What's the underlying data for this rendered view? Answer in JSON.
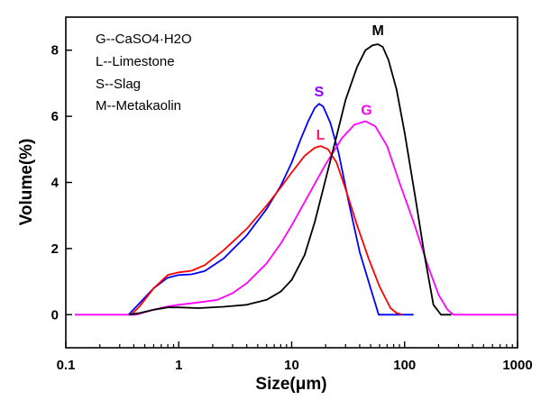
{
  "chart_data": {
    "type": "line",
    "title": "",
    "xlabel": "Size(μm)",
    "ylabel": "Volume(%)",
    "xscale": "log",
    "xlim": [
      0.1,
      1000
    ],
    "ylim": [
      -1,
      9
    ],
    "x_ticks": [
      0.1,
      1,
      10,
      100,
      1000
    ],
    "x_tick_labels": [
      "0.1",
      "1",
      "10",
      "100",
      "1000"
    ],
    "y_ticks": [
      0,
      2,
      4,
      6,
      8
    ],
    "y_tick_labels": [
      "0",
      "2",
      "4",
      "6",
      "8"
    ],
    "grid": false,
    "legend": {
      "placement": "top-left",
      "entries": [
        "G--CaSO4·H2O",
        "L--Limestone",
        "S--Slag",
        "M--Metakaolin"
      ]
    },
    "series": [
      {
        "name": "S",
        "label": "Slag",
        "color": "#0000ff",
        "label_color": "#8b00ff",
        "x": [
          0.36,
          0.45,
          0.6,
          0.8,
          1.0,
          1.3,
          1.7,
          2.5,
          4,
          6,
          8,
          10,
          12,
          14,
          16,
          17.5,
          19,
          22,
          26,
          32,
          40,
          50,
          59,
          80,
          120
        ],
        "y": [
          0,
          0.35,
          0.8,
          1.12,
          1.2,
          1.22,
          1.32,
          1.7,
          2.4,
          3.2,
          3.9,
          4.6,
          5.3,
          5.85,
          6.25,
          6.38,
          6.3,
          5.8,
          4.9,
          3.4,
          1.9,
          0.8,
          0,
          0,
          0
        ]
      },
      {
        "name": "L",
        "label": "Limestone",
        "color": "#ff0000",
        "label_color": "#ff1a6e",
        "x": [
          0.38,
          0.45,
          0.6,
          0.8,
          1.0,
          1.3,
          1.7,
          2.5,
          4,
          6,
          8,
          10,
          13,
          16,
          18,
          21,
          25,
          30,
          38,
          48,
          60,
          75,
          85,
          95
        ],
        "y": [
          0,
          0.25,
          0.8,
          1.2,
          1.28,
          1.33,
          1.5,
          1.95,
          2.6,
          3.3,
          3.85,
          4.3,
          4.8,
          5.05,
          5.1,
          5.0,
          4.6,
          3.8,
          2.7,
          1.7,
          0.85,
          0.2,
          0.05,
          0
        ]
      },
      {
        "name": "G",
        "label": "CaSO4·H2O",
        "color": "#ff00ff",
        "label_color": "#ff00ff",
        "x": [
          0.12,
          0.3,
          0.42,
          0.6,
          0.8,
          1.0,
          1.5,
          2.2,
          3,
          4,
          6,
          8,
          10,
          14,
          20,
          28,
          36,
          45,
          55,
          70,
          90,
          120,
          160,
          200,
          240,
          270,
          1000
        ],
        "y": [
          0,
          0,
          0,
          0.15,
          0.25,
          0.3,
          0.37,
          0.45,
          0.65,
          0.95,
          1.55,
          2.15,
          2.7,
          3.6,
          4.55,
          5.35,
          5.75,
          5.85,
          5.7,
          5.1,
          4.0,
          2.8,
          1.5,
          0.6,
          0.15,
          0,
          0
        ]
      },
      {
        "name": "M",
        "label": "Metakaolin",
        "color": "#000000",
        "label_color": "#000000",
        "x": [
          0.36,
          0.45,
          0.6,
          0.8,
          1.0,
          1.5,
          2.5,
          4,
          6,
          8,
          10,
          13,
          16,
          20,
          25,
          30,
          38,
          45,
          52,
          58,
          64,
          72,
          85,
          100,
          125,
          150,
          180,
          210,
          260
        ],
        "y": [
          0,
          0.05,
          0.15,
          0.22,
          0.22,
          0.2,
          0.24,
          0.3,
          0.45,
          0.7,
          1.05,
          1.8,
          2.8,
          4.1,
          5.4,
          6.5,
          7.5,
          8.0,
          8.15,
          8.18,
          8.1,
          7.7,
          6.8,
          5.5,
          3.5,
          1.8,
          0.3,
          0,
          0
        ]
      }
    ],
    "annotations": [
      {
        "text": "M",
        "x": 58,
        "y": 8.45,
        "color": "#000000"
      },
      {
        "text": "S",
        "x": 17.5,
        "y": 6.6,
        "color": "#8b00ff"
      },
      {
        "text": "G",
        "x": 46,
        "y": 6.05,
        "color": "#ff00ff"
      },
      {
        "text": "L",
        "x": 18,
        "y": 5.3,
        "color": "#ff1a6e"
      }
    ]
  }
}
